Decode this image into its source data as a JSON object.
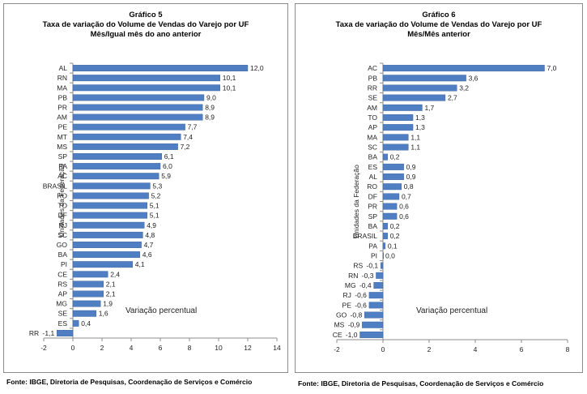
{
  "source_left": "Fonte: IBGE, Diretoria de Pesquisas, Coordenação de Serviços e Comércio",
  "source_right": "Fonte: IBGE, Diretoria de Pesquisas, Coordenação de Serviços e Comércio",
  "bar_color": "#4f7ec2",
  "chart_data": [
    {
      "type": "bar",
      "orientation": "horizontal",
      "title": "Gráfico 5",
      "subtitle": "Taxa de variação do Volume de Vendas do Varejo por UF",
      "subtitle2": "Mês/Igual mês do ano anterior",
      "ylabel": "Unidades da Federação",
      "xlabel": "Variação percentual",
      "xlim": [
        -2,
        14
      ],
      "xticks": [
        -2,
        0,
        2,
        4,
        6,
        8,
        10,
        12,
        14
      ],
      "categories": [
        "AL",
        "RN",
        "MA",
        "PB",
        "PR",
        "AM",
        "PE",
        "MT",
        "MS",
        "SP",
        "PA",
        "AC",
        "BRASIL",
        "RO",
        "TO",
        "DF",
        "RJ",
        "SC",
        "GO",
        "BA",
        "PI",
        "CE",
        "RS",
        "AP",
        "MG",
        "SE",
        "ES",
        "RR"
      ],
      "values": [
        12.0,
        10.1,
        10.1,
        9.0,
        8.9,
        8.9,
        7.7,
        7.4,
        7.2,
        6.1,
        6.0,
        5.9,
        5.3,
        5.2,
        5.1,
        5.1,
        4.9,
        4.8,
        4.7,
        4.6,
        4.1,
        2.4,
        2.1,
        2.1,
        1.9,
        1.6,
        0.4,
        -1.1
      ],
      "labels": [
        "12,0",
        "10,1",
        "10,1",
        "9,0",
        "8,9",
        "8,9",
        "7,7",
        "7,4",
        "7,2",
        "6,1",
        "6,0",
        "5,9",
        "5,3",
        "5,2",
        "5,1",
        "5,1",
        "4,9",
        "4,8",
        "4,7",
        "4,6",
        "4,1",
        "2,4",
        "2,1",
        "2,1",
        "1,9",
        "1,6",
        "0,4",
        "-1,1"
      ]
    },
    {
      "type": "bar",
      "orientation": "horizontal",
      "title": "Gráfico 6",
      "subtitle": "Taxa de variação do Volume de Vendas do Varejo por UF",
      "subtitle2": "Mês/Mês anterior",
      "ylabel": "Unidades da Federação",
      "xlabel": "Variação percentual",
      "xlim": [
        -2,
        8
      ],
      "xticks": [
        -2,
        0,
        2,
        4,
        6,
        8
      ],
      "categories": [
        "AC",
        "PB",
        "RR",
        "SE",
        "AM",
        "TO",
        "AP",
        "MA",
        "SC",
        "BA",
        "ES",
        "AL",
        "RO",
        "DF",
        "PR",
        "SP",
        "BA",
        "BRASIL",
        "PA",
        "PI",
        "RS",
        "RN",
        "MG",
        "RJ",
        "PE",
        "GO",
        "MS",
        "CE"
      ],
      "values": [
        7.0,
        3.6,
        3.2,
        2.7,
        1.7,
        1.3,
        1.3,
        1.1,
        1.1,
        0.2,
        0.9,
        0.9,
        0.8,
        0.7,
        0.6,
        0.6,
        0.2,
        0.2,
        0.1,
        0.0,
        -0.1,
        -0.3,
        -0.4,
        -0.6,
        -0.6,
        -0.8,
        -0.9,
        -1.0
      ],
      "labels": [
        "7,0",
        "3,6",
        "3,2",
        "2,7",
        "1,7",
        "1,3",
        "1,3",
        "1,1",
        "1,1",
        "0,2",
        "0,9",
        "0,9",
        "0,8",
        "0,7",
        "0,6",
        "0,6",
        "0,2",
        "0,2",
        "0,1",
        "0,0",
        "-0,1",
        "-0,3",
        "-0,4",
        "-0,6",
        "-0,6",
        "-0,8",
        "-0,9",
        "-1,0"
      ]
    }
  ]
}
